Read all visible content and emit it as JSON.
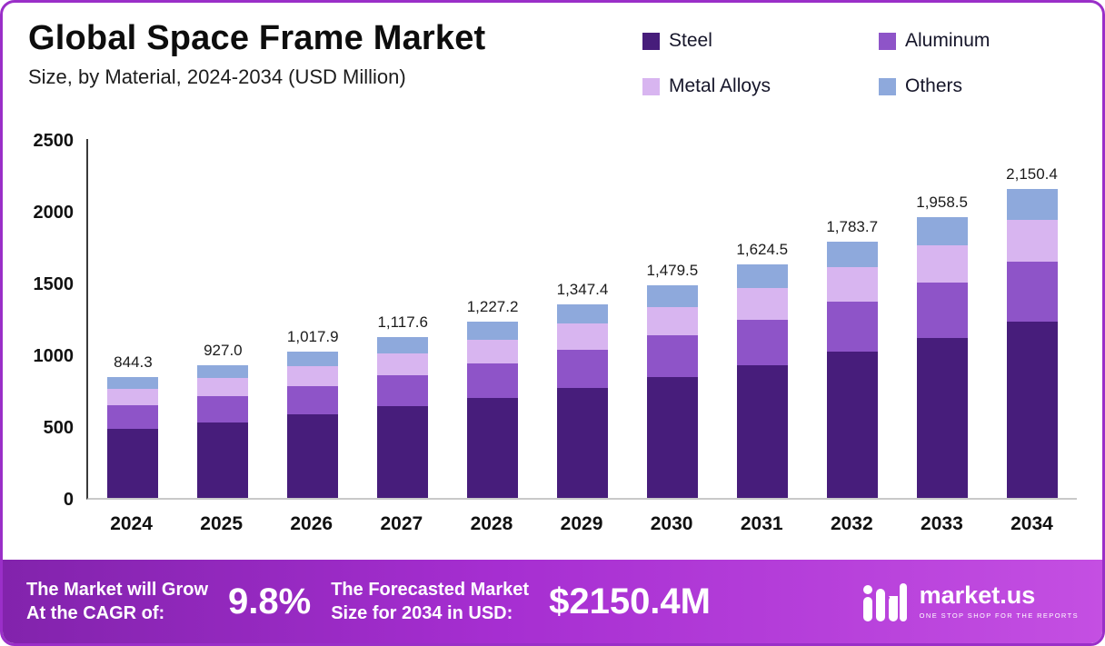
{
  "header": {
    "title": "Global Space Frame Market",
    "subtitle": "Size, by Material, 2024-2034 (USD Million)"
  },
  "legend": [
    {
      "label": "Steel",
      "color": "#471d7b"
    },
    {
      "label": "Aluminum",
      "color": "#8e54c8"
    },
    {
      "label": "Metal Alloys",
      "color": "#d8b5f0"
    },
    {
      "label": "Others",
      "color": "#8ea9dc"
    }
  ],
  "chart_data": {
    "type": "bar",
    "stacked": true,
    "title": "Global Space Frame Market Size, by Material, 2024-2034 (USD Million)",
    "categories": [
      "2024",
      "2025",
      "2026",
      "2027",
      "2028",
      "2029",
      "2030",
      "2031",
      "2032",
      "2033",
      "2034"
    ],
    "totals": [
      844.3,
      927.0,
      1017.9,
      1117.6,
      1227.2,
      1347.4,
      1479.5,
      1624.5,
      1783.7,
      1958.5,
      2150.4
    ],
    "total_labels": [
      "844.3",
      "927.0",
      "1,017.9",
      "1,117.6",
      "1,227.2",
      "1,347.4",
      "1,479.5",
      "1,624.5",
      "1,783.7",
      "1,958.5",
      "2,150.4"
    ],
    "series": [
      {
        "name": "Steel",
        "color": "#471d7b",
        "values": [
          481,
          528,
          580,
          637,
          699,
          768,
          843,
          926,
          1017,
          1116,
          1226
        ]
      },
      {
        "name": "Aluminum",
        "color": "#8e54c8",
        "values": [
          165,
          181,
          199,
          218,
          239,
          263,
          289,
          317,
          348,
          382,
          419
        ]
      },
      {
        "name": "Metal Alloys",
        "color": "#d8b5f0",
        "values": [
          114,
          125,
          137,
          151,
          166,
          182,
          200,
          219,
          241,
          264,
          290
        ]
      },
      {
        "name": "Others",
        "color": "#8ea9dc",
        "values": [
          84,
          93,
          102,
          112,
          123,
          134,
          148,
          162,
          178,
          196,
          215
        ]
      }
    ],
    "xlabel": "",
    "ylabel": "",
    "ylim": [
      0,
      2500
    ],
    "yticks": [
      0,
      500,
      1000,
      1500,
      2000,
      2500
    ],
    "grid": false,
    "legend_position": "top-right"
  },
  "footer": {
    "cagr_label_line1": "The Market will Grow",
    "cagr_label_line2": "At the CAGR of:",
    "cagr_value": "9.8%",
    "forecast_label_line1": "The Forecasted Market",
    "forecast_label_line2": "Size for 2034 in USD:",
    "forecast_value": "$2150.4M",
    "brand": "market.us",
    "brand_tagline": "One Stop Shop For The Reports"
  },
  "colors": {
    "border": "#9a2fc8",
    "footer_gradient_start": "#8223ac",
    "footer_gradient_end": "#c44fe2"
  }
}
